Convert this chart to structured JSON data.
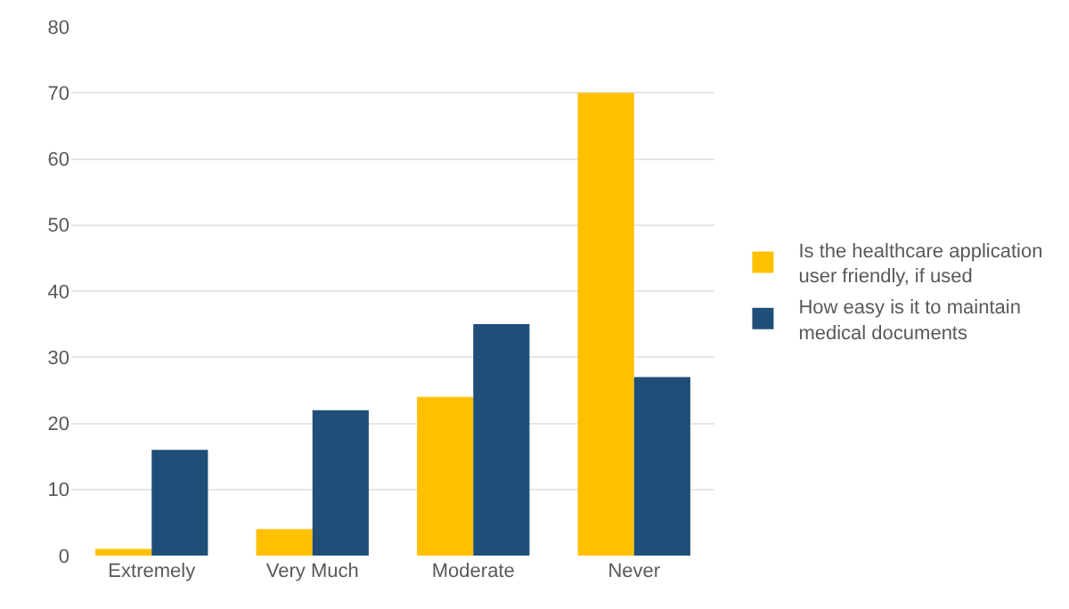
{
  "chart_data": {
    "type": "bar",
    "categories": [
      "Extremely",
      "Very Much",
      "Moderate",
      "Never"
    ],
    "series": [
      {
        "name": "Is the healthcare application user friendly, if used",
        "color": "#ffc000",
        "values": [
          1,
          4,
          24,
          70
        ]
      },
      {
        "name": "How easy is it to maintain medical documents",
        "color": "#1f4e79",
        "values": [
          16,
          22,
          35,
          27
        ]
      }
    ],
    "ylim": [
      0,
      80
    ],
    "yticks": [
      0,
      10,
      20,
      30,
      40,
      50,
      60,
      70,
      80
    ],
    "grid": "y",
    "legend": "right"
  }
}
